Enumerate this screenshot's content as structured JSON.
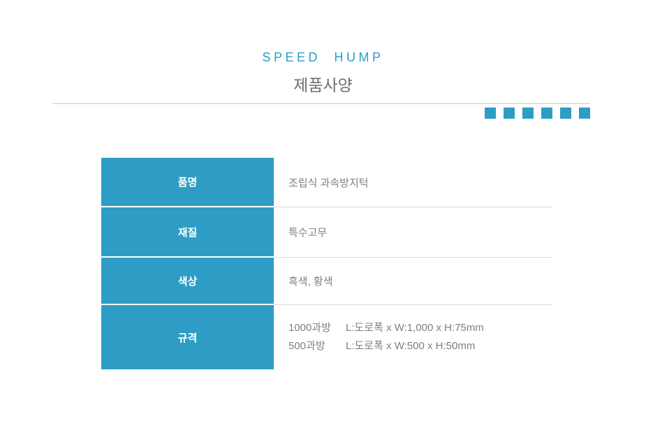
{
  "page": {
    "title": "SPEED HUMP",
    "subtitle": "제품사양"
  },
  "decor": {
    "accent_color": "#2d9dc5",
    "accent_squares_count": 6,
    "divider_color": "#cccccc"
  },
  "spec_table": {
    "header_bg_color": "#2d9dc5",
    "rows": [
      {
        "label": "품명",
        "value": "조립식 과속방지턱"
      },
      {
        "label": "재질",
        "value": "특수고무"
      },
      {
        "label": "색상",
        "value": "흑색, 황색"
      },
      {
        "label": "규격",
        "lines": [
          {
            "model": "1000과방",
            "dimensions": "L:도로폭 x W:1,000 x H:75mm"
          },
          {
            "model": "500과방",
            "dimensions": "L:도로폭 x W:500 x H:50mm"
          }
        ]
      }
    ]
  }
}
